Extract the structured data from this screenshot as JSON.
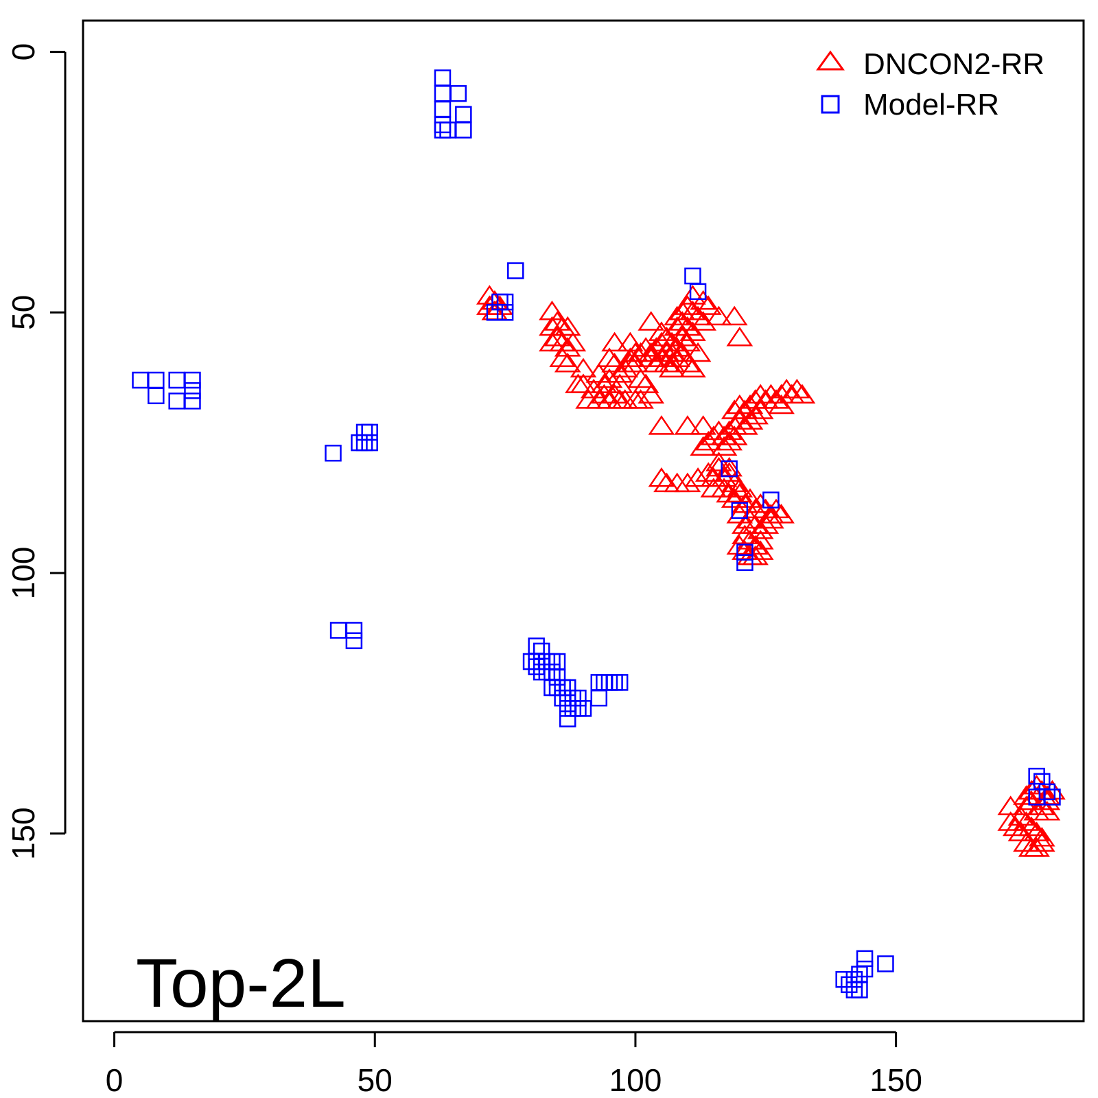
{
  "chart_data": {
    "type": "scatter",
    "title": "",
    "xlabel": "",
    "ylabel": "",
    "xlim": [
      -6,
      186
    ],
    "ylim": [
      186,
      -6
    ],
    "y_reversed": true,
    "x_ticks": [
      0,
      50,
      100,
      150
    ],
    "y_ticks": [
      0,
      50,
      100,
      150
    ],
    "panel_label": "Top-2L",
    "legend": {
      "placement": "top-right",
      "items": [
        "DNCON2-RR",
        "Model-RR"
      ]
    },
    "series": [
      {
        "name": "DNCON2-RR",
        "marker": "triangle-open",
        "color": "#ff0000",
        "points": [
          [
            72,
            47
          ],
          [
            73,
            48
          ],
          [
            72,
            49
          ],
          [
            73,
            50
          ],
          [
            74,
            49
          ],
          [
            84,
            50
          ],
          [
            85,
            52
          ],
          [
            84,
            53
          ],
          [
            86,
            53
          ],
          [
            87,
            53
          ],
          [
            85,
            55
          ],
          [
            86,
            56
          ],
          [
            84,
            56
          ],
          [
            87,
            57
          ],
          [
            88,
            56
          ],
          [
            86,
            59
          ],
          [
            87,
            60
          ],
          [
            90,
            61
          ],
          [
            89,
            64
          ],
          [
            90,
            64
          ],
          [
            93,
            62
          ],
          [
            92,
            65
          ],
          [
            91,
            67
          ],
          [
            93,
            67
          ],
          [
            94,
            66
          ],
          [
            95,
            67
          ],
          [
            96,
            66
          ],
          [
            97,
            67
          ],
          [
            98,
            67
          ],
          [
            100,
            67
          ],
          [
            101,
            67
          ],
          [
            95,
            59
          ],
          [
            96,
            60
          ],
          [
            97,
            62
          ],
          [
            95,
            63
          ],
          [
            98,
            61
          ],
          [
            99,
            60
          ],
          [
            97,
            64
          ],
          [
            94,
            64
          ],
          [
            99,
            59
          ],
          [
            100,
            60
          ],
          [
            101,
            63
          ],
          [
            102,
            64
          ],
          [
            103,
            66
          ],
          [
            96,
            56
          ],
          [
            99,
            56
          ],
          [
            100,
            58
          ],
          [
            101,
            58
          ],
          [
            102,
            57
          ],
          [
            103,
            59
          ],
          [
            104,
            60
          ],
          [
            103,
            58
          ],
          [
            104,
            57
          ],
          [
            105,
            56
          ],
          [
            106,
            58
          ],
          [
            107,
            60
          ],
          [
            103,
            52
          ],
          [
            105,
            54
          ],
          [
            106,
            55
          ],
          [
            107,
            56
          ],
          [
            108,
            57
          ],
          [
            108,
            53
          ],
          [
            109,
            55
          ],
          [
            110,
            56
          ],
          [
            109,
            52
          ],
          [
            110,
            53
          ],
          [
            111,
            54
          ],
          [
            112,
            58
          ],
          [
            108,
            51
          ],
          [
            109,
            50
          ],
          [
            110,
            49
          ],
          [
            111,
            50
          ],
          [
            112,
            51
          ],
          [
            113,
            52
          ],
          [
            111,
            47
          ],
          [
            113,
            48
          ],
          [
            114,
            49
          ],
          [
            116,
            51
          ],
          [
            119,
            51
          ],
          [
            120,
            55
          ],
          [
            107,
            58
          ],
          [
            108,
            59
          ],
          [
            109,
            58
          ],
          [
            110,
            60
          ],
          [
            111,
            61
          ],
          [
            107,
            61
          ],
          [
            106,
            60
          ],
          [
            105,
            59
          ],
          [
            105,
            72
          ],
          [
            110,
            72
          ],
          [
            113,
            72
          ],
          [
            115,
            74
          ],
          [
            116,
            73
          ],
          [
            117,
            74
          ],
          [
            118,
            73
          ],
          [
            119,
            72
          ],
          [
            120,
            71
          ],
          [
            121,
            72
          ],
          [
            122,
            71
          ],
          [
            123,
            70
          ],
          [
            124,
            69
          ],
          [
            119,
            69
          ],
          [
            120,
            68
          ],
          [
            121,
            69
          ],
          [
            122,
            68
          ],
          [
            123,
            67
          ],
          [
            124,
            66
          ],
          [
            125,
            67
          ],
          [
            126,
            66
          ],
          [
            127,
            67
          ],
          [
            128,
            66
          ],
          [
            129,
            65
          ],
          [
            130,
            66
          ],
          [
            131,
            65
          ],
          [
            132,
            66
          ],
          [
            128,
            68
          ],
          [
            117,
            76
          ],
          [
            118,
            75
          ],
          [
            119,
            74
          ],
          [
            114,
            75
          ],
          [
            113,
            76
          ],
          [
            105,
            82
          ],
          [
            106,
            83
          ],
          [
            108,
            83
          ],
          [
            110,
            83
          ],
          [
            112,
            82
          ],
          [
            114,
            81
          ],
          [
            115,
            82
          ],
          [
            116,
            80
          ],
          [
            117,
            82
          ],
          [
            118,
            81
          ],
          [
            119,
            83
          ],
          [
            120,
            84
          ],
          [
            117,
            84
          ],
          [
            118,
            85
          ],
          [
            119,
            86
          ],
          [
            120,
            85
          ],
          [
            121,
            87
          ],
          [
            122,
            86
          ],
          [
            123,
            88
          ],
          [
            124,
            87
          ],
          [
            125,
            88
          ],
          [
            126,
            89
          ],
          [
            127,
            88
          ],
          [
            128,
            89
          ],
          [
            120,
            89
          ],
          [
            121,
            91
          ],
          [
            122,
            90
          ],
          [
            123,
            91
          ],
          [
            124,
            92
          ],
          [
            125,
            91
          ],
          [
            126,
            90
          ],
          [
            121,
            93
          ],
          [
            122,
            94
          ],
          [
            123,
            95
          ],
          [
            124,
            94
          ],
          [
            120,
            95
          ],
          [
            121,
            96
          ],
          [
            122,
            97
          ],
          [
            123,
            97
          ],
          [
            124,
            96
          ],
          [
            118,
            80
          ],
          [
            116,
            79
          ],
          [
            115,
            84
          ],
          [
            175,
            143
          ],
          [
            176,
            142
          ],
          [
            177,
            141
          ],
          [
            178,
            142
          ],
          [
            179,
            143
          ],
          [
            180,
            142
          ],
          [
            175,
            145
          ],
          [
            176,
            144
          ],
          [
            177,
            146
          ],
          [
            178,
            145
          ],
          [
            179,
            144
          ],
          [
            174,
            147
          ],
          [
            175,
            148
          ],
          [
            176,
            149
          ],
          [
            177,
            150
          ],
          [
            178,
            151
          ],
          [
            173,
            149
          ],
          [
            174,
            150
          ],
          [
            175,
            152
          ],
          [
            176,
            153
          ],
          [
            177,
            153
          ],
          [
            178,
            152
          ],
          [
            172,
            145
          ],
          [
            172,
            148
          ],
          [
            179,
            146
          ]
        ]
      },
      {
        "name": "Model-RR",
        "marker": "square-open",
        "color": "#0000ff",
        "points": [
          [
            63,
            5
          ],
          [
            63,
            8
          ],
          [
            66,
            8
          ],
          [
            63,
            11
          ],
          [
            63,
            14
          ],
          [
            67,
            12
          ],
          [
            63,
            15
          ],
          [
            64,
            15
          ],
          [
            67,
            15
          ],
          [
            77,
            42
          ],
          [
            74,
            48
          ],
          [
            75,
            48
          ],
          [
            73,
            50
          ],
          [
            75,
            50
          ],
          [
            5,
            63
          ],
          [
            8,
            63
          ],
          [
            12,
            63
          ],
          [
            15,
            63
          ],
          [
            15,
            65
          ],
          [
            8,
            66
          ],
          [
            12,
            67
          ],
          [
            15,
            67
          ],
          [
            48,
            73
          ],
          [
            49,
            73
          ],
          [
            47,
            75
          ],
          [
            48,
            75
          ],
          [
            49,
            75
          ],
          [
            42,
            77
          ],
          [
            111,
            43
          ],
          [
            112,
            46
          ],
          [
            118,
            80
          ],
          [
            120,
            88
          ],
          [
            121,
            96
          ],
          [
            121,
            98
          ],
          [
            126,
            86
          ],
          [
            43,
            111
          ],
          [
            46,
            111
          ],
          [
            46,
            113
          ],
          [
            81,
            114
          ],
          [
            82,
            115
          ],
          [
            81,
            117
          ],
          [
            80,
            117
          ],
          [
            82,
            117
          ],
          [
            83,
            117
          ],
          [
            84,
            117
          ],
          [
            85,
            117
          ],
          [
            81,
            118
          ],
          [
            82,
            119
          ],
          [
            83,
            119
          ],
          [
            84,
            119
          ],
          [
            85,
            120
          ],
          [
            85,
            122
          ],
          [
            86,
            122
          ],
          [
            87,
            122
          ],
          [
            84,
            122
          ],
          [
            86,
            124
          ],
          [
            87,
            124
          ],
          [
            88,
            124
          ],
          [
            89,
            124
          ],
          [
            87,
            126
          ],
          [
            88,
            126
          ],
          [
            89,
            126
          ],
          [
            90,
            126
          ],
          [
            87,
            128
          ],
          [
            93,
            121
          ],
          [
            94,
            121
          ],
          [
            95,
            121
          ],
          [
            96,
            121
          ],
          [
            97,
            121
          ],
          [
            93,
            124
          ],
          [
            177,
            139
          ],
          [
            178,
            140
          ],
          [
            179,
            142
          ],
          [
            180,
            143
          ],
          [
            177,
            143
          ],
          [
            144,
            174
          ],
          [
            148,
            175
          ],
          [
            144,
            176
          ],
          [
            143,
            177
          ],
          [
            142,
            178
          ],
          [
            141,
            179
          ],
          [
            140,
            178
          ],
          [
            143,
            180
          ],
          [
            142,
            180
          ]
        ]
      }
    ]
  }
}
